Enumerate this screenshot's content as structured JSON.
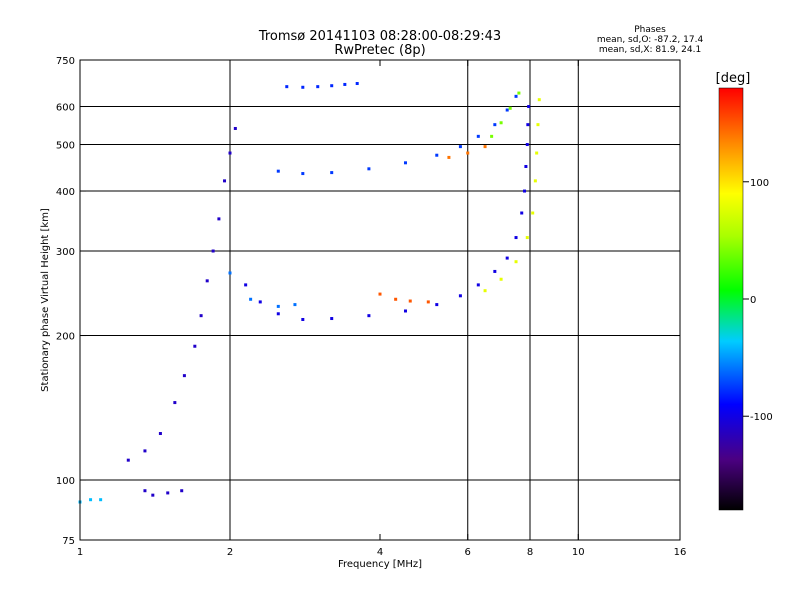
{
  "chart_data": {
    "type": "scatter",
    "title": "Tromsø 20141103 08:28:00-08:29:43",
    "subtitle": "RwPretec (8p)",
    "xlabel": "Frequency [MHz]",
    "ylabel": "Stationary phase Virtual Height [km]",
    "x_scale": "log",
    "y_scale": "log",
    "xlim": [
      1,
      16
    ],
    "ylim": [
      75,
      750
    ],
    "x_ticks": [
      1,
      2,
      4,
      6,
      8,
      10,
      16
    ],
    "x_tick_labels": [
      "1",
      "2",
      "4",
      "6",
      "8",
      "10",
      "16"
    ],
    "y_ticks": [
      75,
      100,
      200,
      300,
      400,
      500,
      600,
      750
    ],
    "y_tick_labels": [
      "75",
      "100",
      "200",
      "300",
      "400",
      "500",
      "600",
      "750"
    ],
    "grid": true,
    "grid_x": [
      2,
      6,
      8,
      10
    ],
    "grid_y": [
      100,
      200,
      300,
      400,
      500,
      600
    ],
    "phases_title": "Phases",
    "phases_o": "mean, sd,O: -87.2, 17.4",
    "phases_x": "mean, sd,X: 81.9, 24.1",
    "colorbar": {
      "label": "[deg]",
      "range": [
        -180,
        180
      ],
      "ticks": [
        100,
        0,
        -100
      ],
      "tick_labels": [
        "100",
        "0",
        "-100"
      ]
    },
    "series": [
      {
        "phase": -100,
        "points": [
          [
            2.15,
            255
          ],
          [
            2.3,
            235
          ],
          [
            2.5,
            222
          ],
          [
            2.8,
            216
          ],
          [
            3.2,
            217
          ],
          [
            3.8,
            220
          ],
          [
            4.5,
            225
          ],
          [
            5.2,
            232
          ],
          [
            5.8,
            242
          ],
          [
            6.3,
            255
          ],
          [
            6.8,
            272
          ],
          [
            7.2,
            290
          ],
          [
            7.5,
            320
          ],
          [
            7.7,
            360
          ],
          [
            7.8,
            400
          ],
          [
            7.85,
            450
          ],
          [
            7.9,
            500
          ],
          [
            7.92,
            550
          ],
          [
            7.95,
            600
          ]
        ]
      },
      {
        "phase": -110,
        "points": [
          [
            1.25,
            110
          ],
          [
            1.35,
            115
          ],
          [
            1.45,
            125
          ],
          [
            1.55,
            145
          ],
          [
            1.62,
            165
          ],
          [
            1.7,
            190
          ],
          [
            1.75,
            220
          ],
          [
            1.8,
            260
          ],
          [
            1.85,
            300
          ],
          [
            1.9,
            350
          ],
          [
            1.95,
            420
          ],
          [
            2.0,
            480
          ],
          [
            2.05,
            540
          ]
        ]
      },
      {
        "phase": -75,
        "points": [
          [
            2.5,
            440
          ],
          [
            2.8,
            435
          ],
          [
            3.2,
            437
          ],
          [
            3.8,
            445
          ],
          [
            4.5,
            458
          ],
          [
            5.2,
            475
          ],
          [
            5.8,
            495
          ],
          [
            6.3,
            520
          ],
          [
            6.8,
            550
          ],
          [
            7.2,
            590
          ],
          [
            7.5,
            630
          ]
        ]
      },
      {
        "phase": -80,
        "points": [
          [
            2.6,
            660
          ],
          [
            2.8,
            658
          ],
          [
            3.0,
            660
          ],
          [
            3.2,
            663
          ],
          [
            3.4,
            667
          ],
          [
            3.6,
            670
          ]
        ]
      },
      {
        "phase": -110,
        "points": [
          [
            1.35,
            95
          ],
          [
            1.4,
            93
          ],
          [
            1.5,
            94
          ],
          [
            1.6,
            95
          ]
        ]
      },
      {
        "phase": -40,
        "points": [
          [
            1.0,
            90
          ],
          [
            1.05,
            91
          ],
          [
            1.1,
            91
          ]
        ]
      },
      {
        "phase": 80,
        "points": [
          [
            6.5,
            248
          ],
          [
            7.0,
            262
          ],
          [
            7.5,
            285
          ],
          [
            7.9,
            320
          ],
          [
            8.1,
            360
          ],
          [
            8.2,
            420
          ],
          [
            8.25,
            480
          ],
          [
            8.3,
            550
          ],
          [
            8.35,
            620
          ]
        ]
      },
      {
        "phase": 40,
        "points": [
          [
            6.7,
            520
          ],
          [
            7.0,
            555
          ],
          [
            7.3,
            595
          ],
          [
            7.6,
            640
          ]
        ]
      },
      {
        "phase": 150,
        "points": [
          [
            4.0,
            244
          ],
          [
            4.3,
            238
          ],
          [
            4.6,
            236
          ],
          [
            5.0,
            235
          ]
        ]
      },
      {
        "phase": -60,
        "points": [
          [
            2.0,
            270
          ],
          [
            2.2,
            238
          ],
          [
            2.5,
            230
          ],
          [
            2.7,
            232
          ]
        ]
      },
      {
        "phase": 140,
        "points": [
          [
            5.5,
            470
          ],
          [
            6.0,
            480
          ],
          [
            6.5,
            495
          ]
        ]
      }
    ]
  }
}
